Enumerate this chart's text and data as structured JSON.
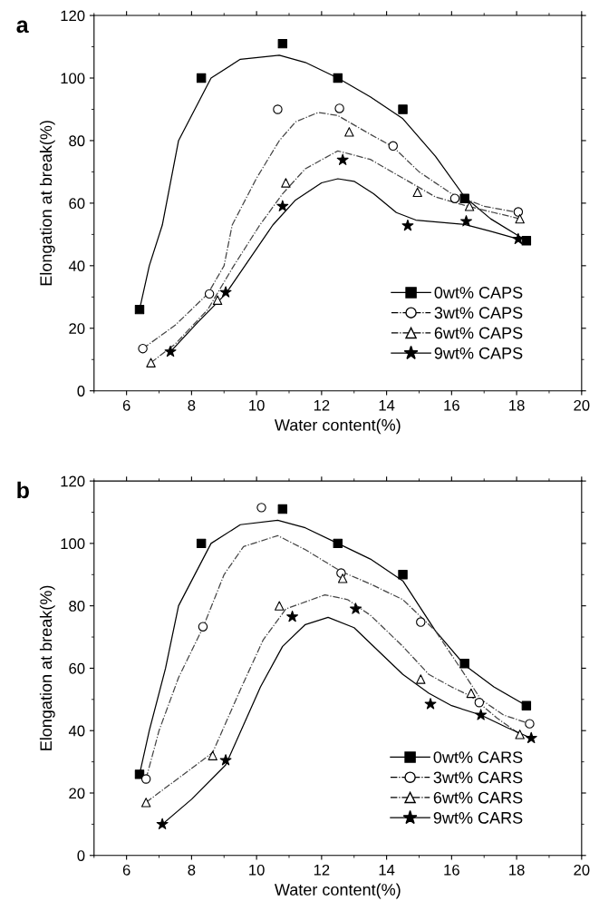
{
  "chart_data": [
    {
      "type": "scatter",
      "title": "a",
      "xlabel": "Water content(%)",
      "ylabel": "Elongation at break(%)",
      "xlim": [
        5,
        20
      ],
      "ylim": [
        0,
        120
      ],
      "xticks": [
        6,
        8,
        10,
        12,
        14,
        16,
        18,
        20
      ],
      "yticks": [
        0,
        20,
        40,
        60,
        80,
        100,
        120
      ],
      "grid": false,
      "legend": "bottom right",
      "series": [
        {
          "name": "0wt% CAPS",
          "color": "#000000",
          "marker": "square",
          "line_style": "solid",
          "x": [
            6.4,
            8.3,
            10.8,
            12.5,
            14.5,
            16.4,
            18.3
          ],
          "values": [
            26,
            100,
            111,
            100,
            90,
            61.5,
            48
          ]
        },
        {
          "name": "3wt% CAPS",
          "color": "#000000",
          "marker": "circle",
          "line_style": "dashed",
          "x": [
            6.5,
            8.55,
            10.65,
            12.55,
            14.2,
            16.1,
            18.05
          ],
          "values": [
            13.5,
            31,
            90,
            90.3,
            78.3,
            61.5,
            57.2
          ]
        },
        {
          "name": "6wt% CAPS",
          "color": "#000000",
          "marker": "triangle",
          "line_style": "dashed",
          "x": [
            6.75,
            8.8,
            10.9,
            12.85,
            14.95,
            16.55,
            18.1
          ],
          "values": [
            9,
            29,
            66.5,
            82.8,
            63.5,
            59,
            55
          ]
        },
        {
          "name": "9wt% CAPS",
          "color": "#000000",
          "marker": "star",
          "line_style": "solid",
          "x": [
            7.35,
            9.05,
            10.8,
            12.65,
            14.65,
            16.45,
            18.05
          ],
          "values": [
            12.5,
            31.5,
            59,
            73.8,
            52.8,
            54.2,
            48.5
          ]
        },
        {
          "type": "line",
          "color": "#000000",
          "line_style": "solid",
          "x": [
            6.4,
            6.7,
            7.1,
            7.6,
            8.6,
            9.5,
            10.7,
            11.5,
            12.5,
            13.5,
            14.5,
            15.5,
            16.4,
            17.2,
            18.3
          ],
          "values": [
            26,
            40,
            53,
            80,
            100,
            106,
            107.3,
            105,
            100,
            94,
            87,
            75,
            62,
            55,
            48
          ]
        },
        {
          "type": "line",
          "color": "#444444",
          "line_style": "dashed",
          "x": [
            6.5,
            7.5,
            8.5,
            9.0,
            9.25,
            10.0,
            10.7,
            11.2,
            11.9,
            12.5,
            13.5,
            14.2,
            15.0,
            16.0,
            17.0,
            18.05
          ],
          "values": [
            13.5,
            21,
            31,
            40,
            53,
            68,
            80,
            86,
            89,
            88,
            82,
            78,
            70,
            63,
            59,
            57
          ]
        },
        {
          "type": "line",
          "color": "#444444",
          "line_style": "dashed",
          "x": [
            6.75,
            7.5,
            8.5,
            9.3,
            10.1,
            10.8,
            11.5,
            12.5,
            13.5,
            14.5,
            15.5,
            16.5,
            17.3,
            18.1
          ],
          "values": [
            9,
            15,
            26,
            40,
            53,
            63,
            71,
            76.7,
            74,
            68,
            62,
            59,
            57,
            55
          ]
        },
        {
          "type": "line",
          "color": "#000000",
          "line_style": "solid",
          "x": [
            7.35,
            8.2,
            9.05,
            10.5,
            11.2,
            12.0,
            12.5,
            13.0,
            13.6,
            14.3,
            14.9,
            16.4,
            17.2,
            18.05
          ],
          "values": [
            12.5,
            22,
            31,
            53,
            61,
            66.5,
            67.8,
            67,
            63,
            57,
            54.6,
            53.2,
            51,
            48.5
          ]
        }
      ]
    },
    {
      "type": "scatter",
      "title": "b",
      "xlabel": "Water content(%)",
      "ylabel": "Elongation at break(%)",
      "xlim": [
        5,
        20
      ],
      "ylim": [
        0,
        120
      ],
      "xticks": [
        6,
        8,
        10,
        12,
        14,
        16,
        18,
        20
      ],
      "yticks": [
        0,
        20,
        40,
        60,
        80,
        100,
        120
      ],
      "grid": false,
      "legend": "bottom right",
      "series": [
        {
          "name": "0wt% CARS",
          "color": "#000000",
          "marker": "square",
          "line_style": "solid",
          "x": [
            6.4,
            8.3,
            10.8,
            12.5,
            14.5,
            16.4,
            18.3
          ],
          "values": [
            26,
            100,
            111,
            100,
            90,
            61.5,
            48
          ]
        },
        {
          "name": "3wt% CARS",
          "color": "#000000",
          "marker": "circle",
          "line_style": "dashed",
          "x": [
            6.6,
            8.35,
            10.15,
            12.6,
            15.05,
            16.85,
            18.4
          ],
          "values": [
            24.5,
            73.3,
            111.5,
            90.5,
            74.8,
            49,
            42.2
          ]
        },
        {
          "name": "6wt% CARS",
          "color": "#000000",
          "marker": "triangle",
          "line_style": "dashed",
          "x": [
            6.6,
            8.65,
            10.7,
            12.65,
            15.05,
            16.6,
            18.1
          ],
          "values": [
            17,
            32,
            80,
            88.8,
            56.5,
            52,
            38.8
          ]
        },
        {
          "name": "9wt% CARS",
          "color": "#000000",
          "marker": "star",
          "line_style": "solid",
          "x": [
            7.1,
            9.05,
            11.1,
            13.05,
            15.35,
            16.9,
            18.45
          ],
          "values": [
            10,
            30.5,
            76.5,
            79,
            48.5,
            45,
            37.6
          ]
        },
        {
          "type": "line",
          "color": "#000000",
          "line_style": "solid",
          "x": [
            6.4,
            6.7,
            7.2,
            7.6,
            8.6,
            9.5,
            10.65,
            11.5,
            12.5,
            13.5,
            14.5,
            15.5,
            16.4,
            17.3,
            18.3
          ],
          "values": [
            26,
            40,
            60,
            80,
            100,
            106,
            107.4,
            105,
            100,
            95,
            88,
            72,
            61,
            54,
            48
          ]
        },
        {
          "type": "line",
          "color": "#444444",
          "line_style": "dashed",
          "x": [
            6.6,
            7.0,
            7.6,
            8.35,
            9.0,
            9.6,
            10.65,
            11.5,
            12.6,
            13.5,
            14.5,
            15.5,
            16.4,
            16.9,
            17.6,
            18.4
          ],
          "values": [
            24.5,
            40,
            57,
            73,
            90,
            99,
            102.5,
            98,
            91,
            87,
            82,
            72,
            58,
            50,
            45,
            42.2
          ]
        },
        {
          "type": "line",
          "color": "#444444",
          "line_style": "dashed",
          "x": [
            6.6,
            7.5,
            8.65,
            9.54,
            10.2,
            10.9,
            12.1,
            12.8,
            13.5,
            14.5,
            15.3,
            16.0,
            16.6,
            17.4,
            18.1
          ],
          "values": [
            17,
            24,
            33,
            54,
            69,
            79,
            83.5,
            82,
            77,
            67,
            58,
            54,
            51,
            44,
            38.8
          ]
        },
        {
          "type": "line",
          "color": "#000000",
          "line_style": "solid",
          "x": [
            7.1,
            8.0,
            9.05,
            10.12,
            10.8,
            11.5,
            12.2,
            13.0,
            13.8,
            14.5,
            15.3,
            16.0,
            16.9,
            17.7,
            18.45
          ],
          "values": [
            10,
            18,
            29,
            54,
            67,
            74,
            76.3,
            73,
            65,
            58,
            52,
            48,
            45,
            41,
            37.6
          ]
        }
      ]
    }
  ]
}
